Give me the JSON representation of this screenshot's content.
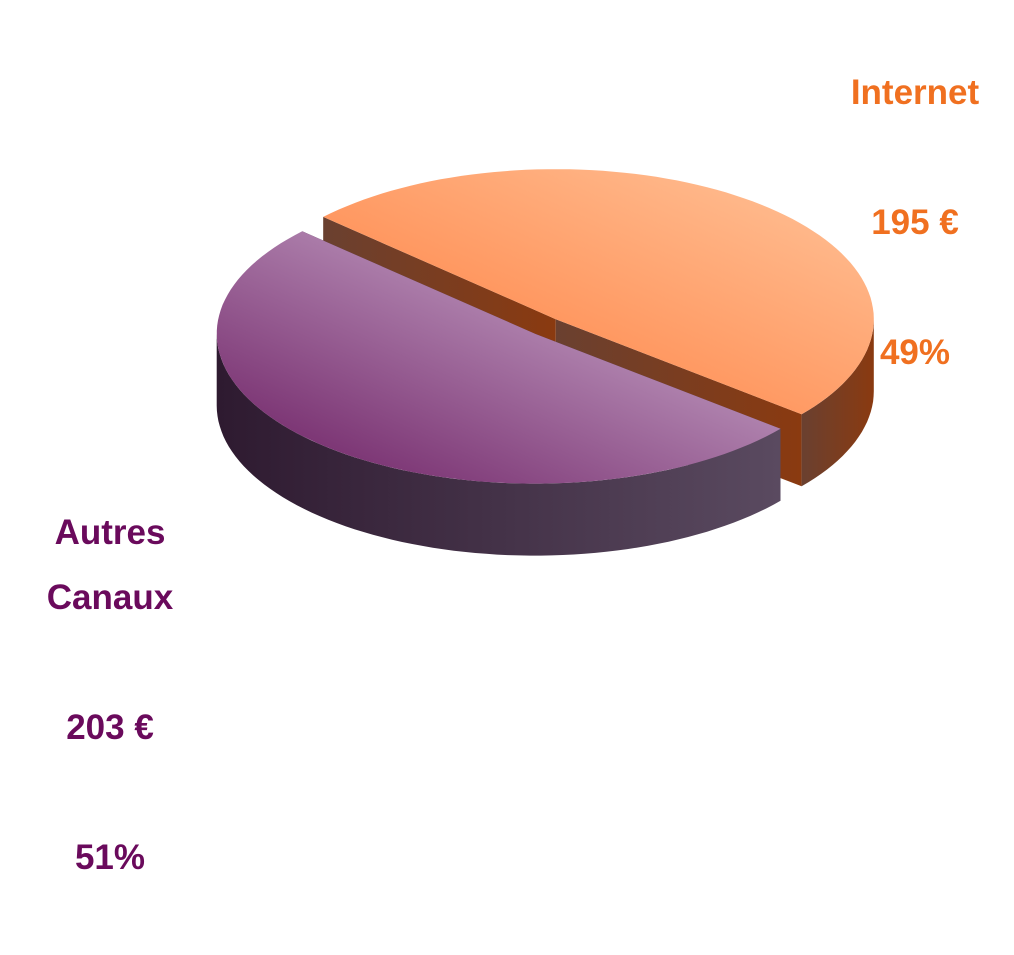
{
  "chart_data": {
    "type": "pie3d",
    "categories": [
      "Internet",
      "Autres\nCanaux"
    ],
    "values": [
      195,
      203
    ],
    "value_labels": [
      "195 €",
      "203 €"
    ],
    "percentages": [
      49,
      51
    ],
    "percentage_labels": [
      "49%",
      "51%"
    ],
    "colors": [
      "#ff8c55",
      "#a070a0"
    ]
  }
}
